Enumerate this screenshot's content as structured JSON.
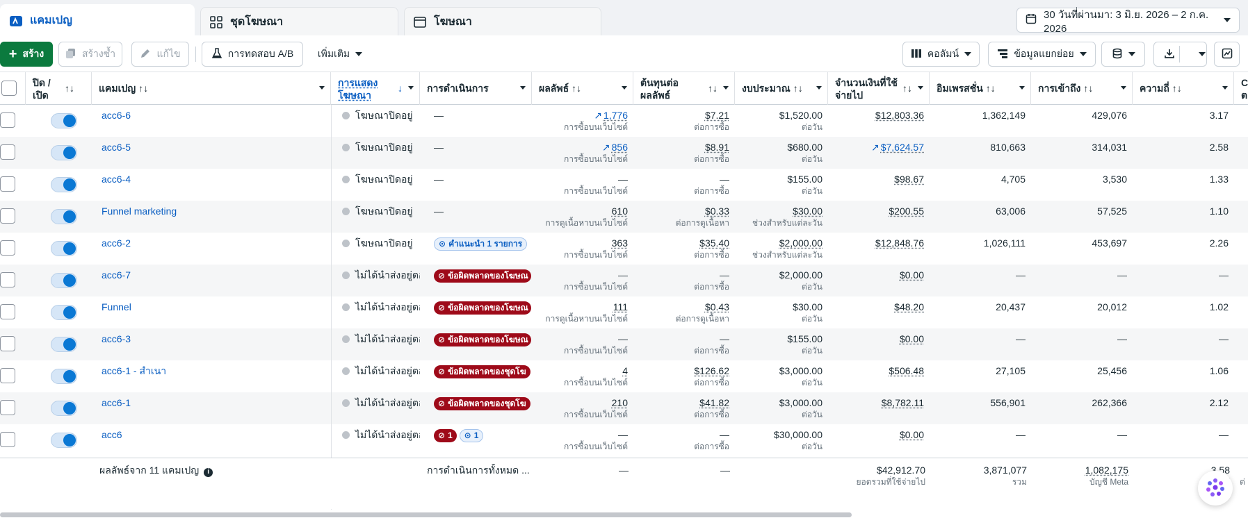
{
  "tabs": [
    {
      "label": "แคมเปญ",
      "icon": "folder-icon"
    },
    {
      "label": "ชุดโฆษณา",
      "icon": "grid-icon"
    },
    {
      "label": "โฆษณา",
      "icon": "window-icon"
    }
  ],
  "date_range": "30 วันที่ผ่านมา: 3 มิ.ย. 2026 – 2 ก.ค. 2026",
  "toolbar": {
    "create": "สร้าง",
    "duplicate": "สร้างซ้ำ",
    "edit": "แก้ไข",
    "ab_test": "การทดสอบ A/B",
    "more": "เพิ่มเติม",
    "columns": "คอลัมน์",
    "breakdown": "ข้อมูลแยกย่อย"
  },
  "headers": {
    "onoff": "ปิด / เปิด",
    "campaign": "แคมเปญ",
    "delivery": "การแสดงโฆษณา",
    "actions": "การดำเนินการ",
    "results": "ผลลัพธ์",
    "cpr": "ต้นทุนต่อผลลัพธ์",
    "budget": "งบประมาณ",
    "spent": "จำนวนเงินที่ใช้จ่ายไป",
    "impressions": "อิมเพรสชั่น",
    "reach": "การเข้าถึง",
    "frequency": "ความถี่",
    "extra": "C ต"
  },
  "rows": [
    {
      "name": "acc6-6",
      "delivery": "โฆษณาปิดอยู่",
      "actions": "—",
      "action_type": "none",
      "result": "1,776",
      "result_trend": true,
      "result_sub": "การซื้อบนเว็บไซต์",
      "cpr": "$7.21",
      "cpr_sub": "ต่อการซื้อ",
      "budget": "$1,520.00",
      "budget_sub": "ต่อวัน",
      "budget_ul": false,
      "spent": "$12,803.36",
      "spent_trend": false,
      "impressions": "1,362,149",
      "reach": "429,076",
      "frequency": "3.17"
    },
    {
      "name": "acc6-5",
      "delivery": "โฆษณาปิดอยู่",
      "actions": "—",
      "action_type": "none",
      "result": "856",
      "result_trend": true,
      "result_sub": "การซื้อบนเว็บไซต์",
      "cpr": "$8.91",
      "cpr_sub": "ต่อการซื้อ",
      "budget": "$680.00",
      "budget_sub": "ต่อวัน",
      "budget_ul": false,
      "spent": "$7,624.57",
      "spent_trend": true,
      "impressions": "810,663",
      "reach": "314,031",
      "frequency": "2.58"
    },
    {
      "name": "acc6-4",
      "delivery": "โฆษณาปิดอยู่",
      "actions": "—",
      "action_type": "none",
      "result": "—",
      "result_trend": false,
      "result_sub": "การซื้อบนเว็บไซต์",
      "cpr": "—",
      "cpr_sub": "ต่อการซื้อ",
      "budget": "$155.00",
      "budget_sub": "ต่อวัน",
      "budget_ul": false,
      "spent": "$98.67",
      "spent_trend": false,
      "impressions": "4,705",
      "reach": "3,530",
      "frequency": "1.33"
    },
    {
      "name": "Funnel marketing",
      "delivery": "โฆษณาปิดอยู่",
      "actions": "—",
      "action_type": "none",
      "result": "610",
      "result_trend": false,
      "result_sub": "การดูเนื้อหาบนเว็บไซต์",
      "cpr": "$0.33",
      "cpr_sub": "ต่อการดูเนื้อหา",
      "budget": "$30.00",
      "budget_sub": "ช่วงสำหรับแต่ละวัน",
      "budget_ul": true,
      "spent": "$200.55",
      "spent_trend": false,
      "impressions": "63,006",
      "reach": "57,525",
      "frequency": "1.10"
    },
    {
      "name": "acc6-2",
      "delivery": "โฆษณาปิดอยู่",
      "actions": "คำแนะนำ 1 รายการ",
      "action_type": "info",
      "result": "363",
      "result_trend": false,
      "result_sub": "การซื้อบนเว็บไซต์",
      "cpr": "$35.40",
      "cpr_sub": "ต่อการซื้อ",
      "budget": "$2,000.00",
      "budget_sub": "ช่วงสำหรับแต่ละวัน",
      "budget_ul": true,
      "spent": "$12,848.76",
      "spent_trend": false,
      "impressions": "1,026,111",
      "reach": "453,697",
      "frequency": "2.26"
    },
    {
      "name": "acc6-7",
      "delivery": "ไม่ได้นำส่งอยู่ตอ",
      "actions": "ข้อผิดพลาดของโฆษณ",
      "action_type": "error",
      "result": "—",
      "result_trend": false,
      "result_sub": "การซื้อบนเว็บไซต์",
      "cpr": "—",
      "cpr_sub": "ต่อการซื้อ",
      "budget": "$2,000.00",
      "budget_sub": "ต่อวัน",
      "budget_ul": false,
      "spent": "$0.00",
      "spent_trend": false,
      "impressions": "—",
      "reach": "—",
      "frequency": "—"
    },
    {
      "name": "Funnel",
      "delivery": "ไม่ได้นำส่งอยู่ตอ",
      "actions": "ข้อผิดพลาดของโฆษณ",
      "action_type": "error",
      "result": "111",
      "result_trend": false,
      "result_sub": "การดูเนื้อหาบนเว็บไซต์",
      "cpr": "$0.43",
      "cpr_sub": "ต่อการดูเนื้อหา",
      "budget": "$30.00",
      "budget_sub": "ต่อวัน",
      "budget_ul": false,
      "spent": "$48.20",
      "spent_trend": false,
      "impressions": "20,437",
      "reach": "20,012",
      "frequency": "1.02"
    },
    {
      "name": "acc6-3",
      "delivery": "ไม่ได้นำส่งอยู่ตอ",
      "actions": "ข้อผิดพลาดของโฆษณ",
      "action_type": "error",
      "result": "—",
      "result_trend": false,
      "result_sub": "การซื้อบนเว็บไซต์",
      "cpr": "—",
      "cpr_sub": "ต่อการซื้อ",
      "budget": "$155.00",
      "budget_sub": "ต่อวัน",
      "budget_ul": false,
      "spent": "$0.00",
      "spent_trend": false,
      "impressions": "—",
      "reach": "—",
      "frequency": "—"
    },
    {
      "name": "acc6-1 - สำเนา",
      "delivery": "ไม่ได้นำส่งอยู่ตอ",
      "actions": "ข้อผิดพลาดของชุดโฆ",
      "action_type": "error",
      "result": "4",
      "result_trend": false,
      "result_sub": "การซื้อบนเว็บไซต์",
      "cpr": "$126.62",
      "cpr_sub": "ต่อการซื้อ",
      "budget": "$3,000.00",
      "budget_sub": "ต่อวัน",
      "budget_ul": false,
      "spent": "$506.48",
      "spent_trend": false,
      "impressions": "27,105",
      "reach": "25,456",
      "frequency": "1.06"
    },
    {
      "name": "acc6-1",
      "delivery": "ไม่ได้นำส่งอยู่ตอ",
      "actions": "ข้อผิดพลาดของชุดโฆ",
      "action_type": "error",
      "result": "210",
      "result_trend": false,
      "result_sub": "การซื้อบนเว็บไซต์",
      "cpr": "$41.82",
      "cpr_sub": "ต่อการซื้อ",
      "budget": "$3,000.00",
      "budget_sub": "ต่อวัน",
      "budget_ul": false,
      "spent": "$8,782.11",
      "spent_trend": false,
      "impressions": "556,901",
      "reach": "262,366",
      "frequency": "2.12"
    },
    {
      "name": "acc6",
      "delivery": "ไม่ได้นำส่งอยู่ตอ",
      "actions": "",
      "action_type": "mixed",
      "err_count": "1",
      "info_count": "1",
      "result": "—",
      "result_trend": false,
      "result_sub": "การซื้อบนเว็บไซต์",
      "cpr": "—",
      "cpr_sub": "ต่อการซื้อ",
      "budget": "$30,000.00",
      "budget_sub": "ต่อวัน",
      "budget_ul": false,
      "spent": "$0.00",
      "spent_trend": false,
      "impressions": "—",
      "reach": "—",
      "frequency": "—"
    }
  ],
  "footer": {
    "summary": "ผลลัพธ์จาก 11 แคมเปญ",
    "actions": "การดำเนินการทั้งหมด ...",
    "result": "—",
    "cpr": "—",
    "spent": "$42,912.70",
    "spent_sub": "ยอดรวมที่ใช้จ่ายไป",
    "impressions": "3,871,077",
    "impressions_sub": "รวม",
    "reach": "1,082,175",
    "reach_sub": "บัญชี Meta",
    "frequency": "3.58",
    "frequency_sub": "ต่อบั",
    "extra_sub": "ต่"
  },
  "colors": {
    "accent": "#0a5ec2",
    "create": "#0b7a3e",
    "error": "#9e0a19"
  }
}
